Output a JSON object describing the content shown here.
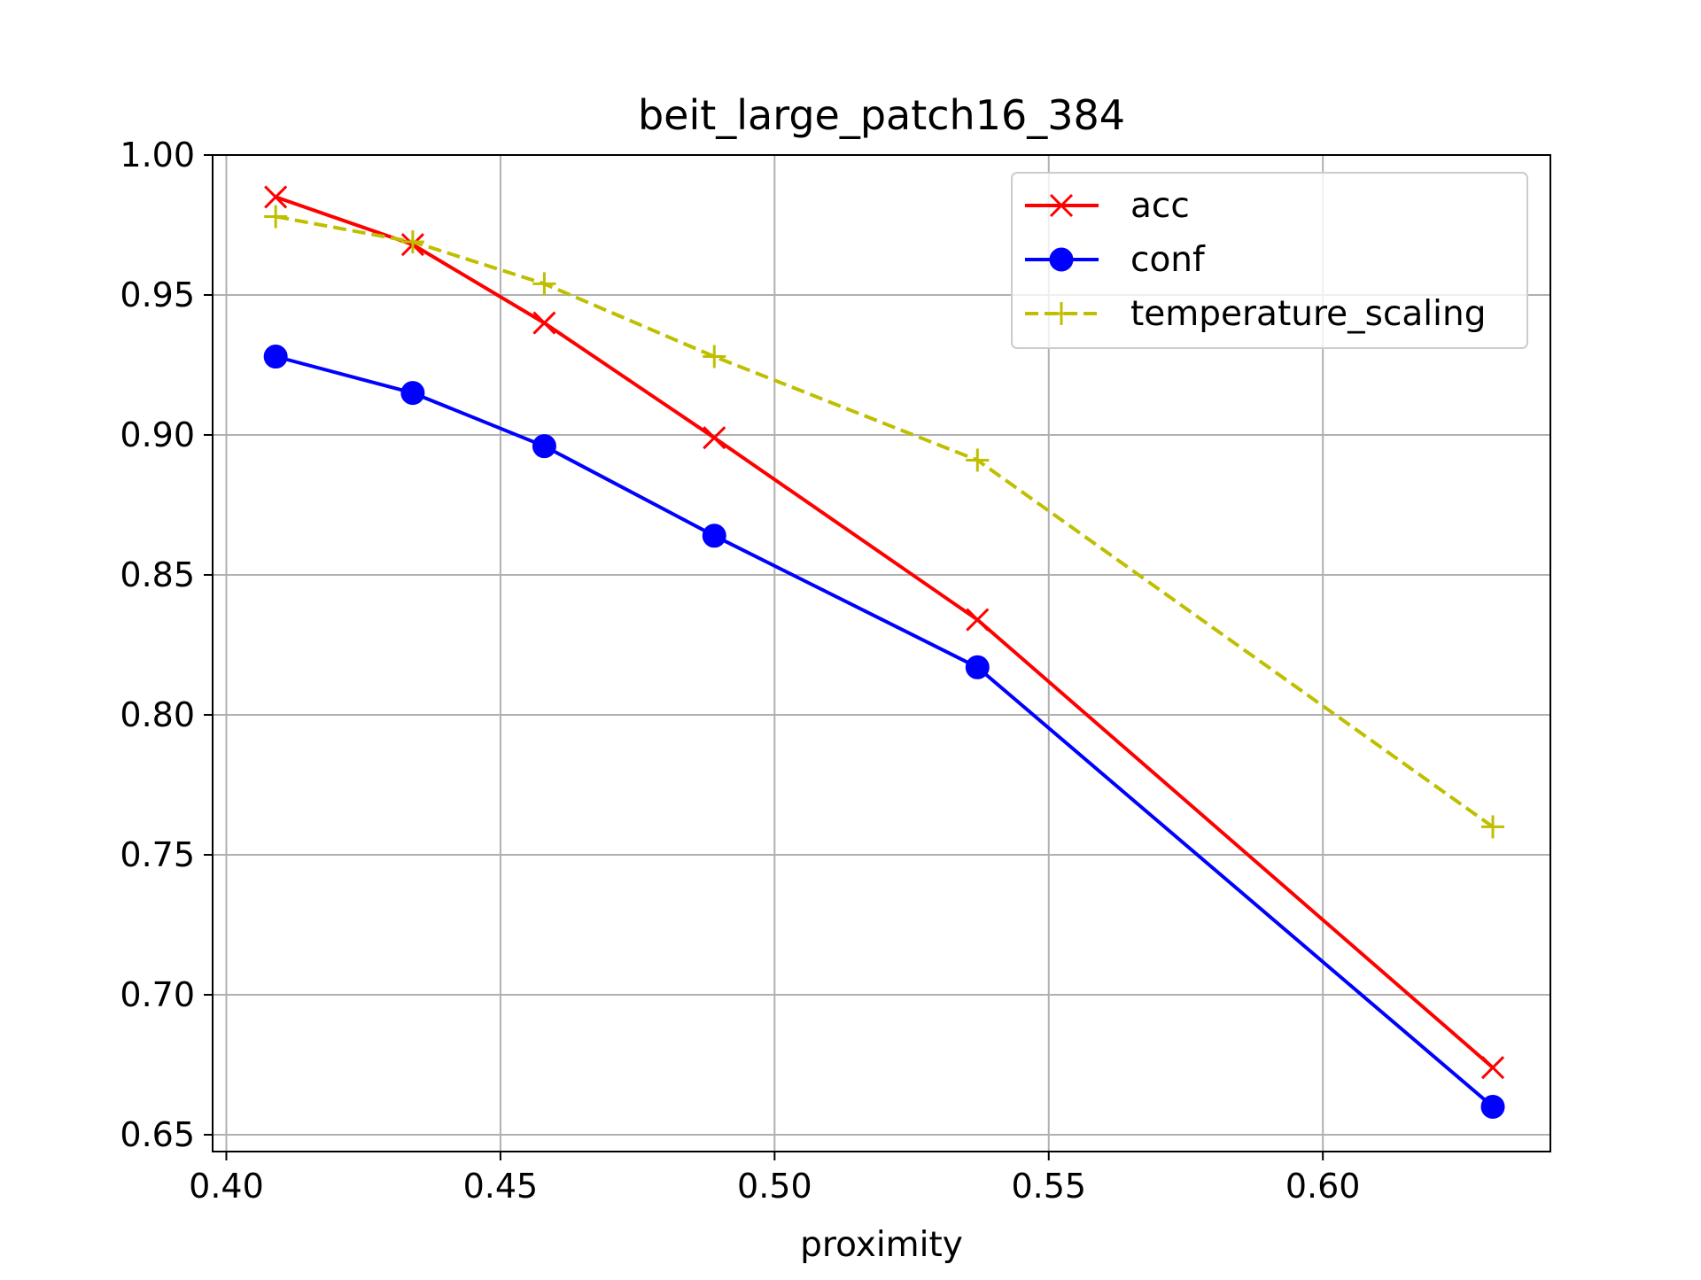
{
  "chart_data": {
    "type": "line",
    "title": "beit_large_patch16_384",
    "xlabel": "proximity",
    "ylabel": "",
    "xlim": [
      0.3975,
      0.6415
    ],
    "ylim": [
      0.644,
      1.0
    ],
    "x_ticks": [
      0.4,
      0.45,
      0.5,
      0.55,
      0.6
    ],
    "x_tick_labels": [
      "0.40",
      "0.45",
      "0.50",
      "0.55",
      "0.60"
    ],
    "y_ticks": [
      0.65,
      0.7,
      0.75,
      0.8,
      0.85,
      0.9,
      0.95,
      1.0
    ],
    "y_tick_labels": [
      "0.65",
      "0.70",
      "0.75",
      "0.80",
      "0.85",
      "0.90",
      "0.95",
      "1.00"
    ],
    "grid": true,
    "legend_position": "top-right",
    "x": [
      0.409,
      0.434,
      0.458,
      0.489,
      0.537,
      0.631
    ],
    "series": [
      {
        "name": "acc",
        "values": [
          0.985,
          0.968,
          0.94,
          0.899,
          0.834,
          0.674
        ],
        "color": "#ff0000",
        "marker": "x",
        "dash": "solid"
      },
      {
        "name": "conf",
        "values": [
          0.928,
          0.915,
          0.896,
          0.864,
          0.817,
          0.66
        ],
        "color": "#0000ff",
        "marker": "o",
        "dash": "solid"
      },
      {
        "name": "temperature_scaling",
        "values": [
          0.978,
          0.969,
          0.954,
          0.928,
          0.891,
          0.76
        ],
        "color": "#bfbf00",
        "marker": "+",
        "dash": "dashed"
      }
    ]
  }
}
